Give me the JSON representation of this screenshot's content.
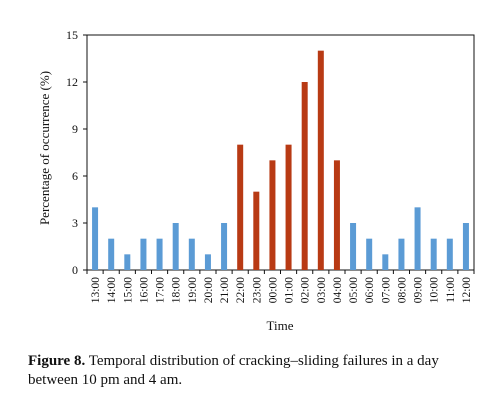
{
  "figure": {
    "label": "Figure 8.",
    "caption": "Temporal distribution of cracking–sliding failures in a day between 10 pm and 4 am."
  },
  "chart_data": {
    "type": "bar",
    "title": "",
    "xlabel": "Time",
    "ylabel": "Percentage of occurrence (%)",
    "ylim": [
      0,
      15
    ],
    "yticks": [
      0,
      3,
      6,
      9,
      12,
      15
    ],
    "grid": false,
    "categories": [
      "13:00",
      "14:00",
      "15:00",
      "16:00",
      "17:00",
      "18:00",
      "19:00",
      "20:00",
      "21:00",
      "22:00",
      "23:00",
      "00:00",
      "01:00",
      "02:00",
      "03:00",
      "04:00",
      "05:00",
      "06:00",
      "07:00",
      "08:00",
      "09:00",
      "10:00",
      "11:00",
      "12:00"
    ],
    "values": [
      4,
      2,
      1,
      2,
      2,
      3,
      2,
      1,
      3,
      8,
      5,
      7,
      8,
      12,
      14,
      7,
      3,
      2,
      1,
      2,
      4,
      2,
      2,
      3
    ],
    "highlight_range": [
      "22:00",
      "04:00"
    ],
    "colors": {
      "normal": "#5b9bd5",
      "highlight": "#b83a14",
      "axis": "#111111"
    }
  }
}
